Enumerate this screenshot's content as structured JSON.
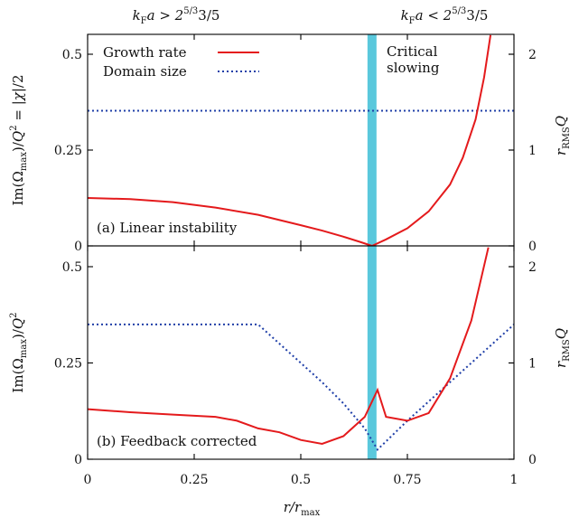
{
  "chart_data": {
    "type": "line",
    "x_label": "r/r_max",
    "top_annotations": {
      "left": "k_F a > 2^(5/3) 3/5",
      "right": "k_F a < 2^(5/3) 3/5"
    },
    "critical_label": [
      "Critical",
      "slowing"
    ],
    "critical_x": 0.667,
    "colors": {
      "growth": "#e41a1c",
      "domain": "#1f3fa8",
      "critical_band": "#5ac8dc"
    },
    "legend": {
      "growth": "Growth rate",
      "domain": "Domain size"
    },
    "x_ticks": [
      "0",
      "0.25",
      "0.5",
      "0.75",
      "1"
    ],
    "xlim": [
      0,
      1
    ],
    "panels": [
      {
        "label": "(a) Linear instability",
        "ylabel_left": "Im(Ω_max)/Q² = |χ|/2",
        "ylabel_right": "r_RMS Q",
        "ylim_left": [
          0,
          0.55
        ],
        "ylim_right": [
          0,
          2.2
        ],
        "y_ticks_left": [
          "0",
          "0.25",
          "0.5"
        ],
        "y_ticks_right": [
          "0",
          "1",
          "2"
        ],
        "growth_rate": {
          "x": [
            0,
            0.1,
            0.2,
            0.3,
            0.4,
            0.5,
            0.55,
            0.6,
            0.64,
            0.667,
            0.7,
            0.75,
            0.8,
            0.85,
            0.88,
            0.91,
            0.93,
            0.945
          ],
          "y": [
            0.125,
            0.122,
            0.114,
            0.1,
            0.081,
            0.054,
            0.04,
            0.024,
            0.01,
            0.0,
            0.017,
            0.046,
            0.09,
            0.16,
            0.23,
            0.33,
            0.44,
            0.55
          ]
        },
        "domain_size": {
          "x": [
            0,
            1
          ],
          "y": [
            1.41,
            1.41
          ]
        }
      },
      {
        "label": "(b) Feedback corrected",
        "ylabel_left": "Im(Ω_max)/Q²",
        "ylabel_right": "r_RMS Q",
        "ylim_left": [
          0,
          0.55
        ],
        "ylim_right": [
          0,
          2.2
        ],
        "y_ticks_left": [
          "0",
          "0.25",
          "0.5"
        ],
        "y_ticks_right": [
          "0",
          "1",
          "2"
        ],
        "growth_rate": {
          "x": [
            0,
            0.1,
            0.2,
            0.3,
            0.35,
            0.4,
            0.45,
            0.5,
            0.55,
            0.6,
            0.65,
            0.68,
            0.7,
            0.75,
            0.8,
            0.85,
            0.9,
            0.94
          ],
          "y": [
            0.13,
            0.122,
            0.116,
            0.11,
            0.1,
            0.08,
            0.07,
            0.05,
            0.04,
            0.06,
            0.11,
            0.18,
            0.11,
            0.1,
            0.12,
            0.21,
            0.36,
            0.55
          ]
        },
        "domain_size": {
          "x": [
            0,
            0.4,
            0.45,
            0.5,
            0.55,
            0.6,
            0.65,
            0.68,
            0.75,
            0.8,
            0.85,
            0.9,
            0.95,
            1.0
          ],
          "y": [
            1.4,
            1.4,
            1.2,
            1.0,
            0.8,
            0.58,
            0.32,
            0.1,
            0.4,
            0.6,
            0.8,
            1.0,
            1.2,
            1.4
          ]
        }
      }
    ]
  }
}
